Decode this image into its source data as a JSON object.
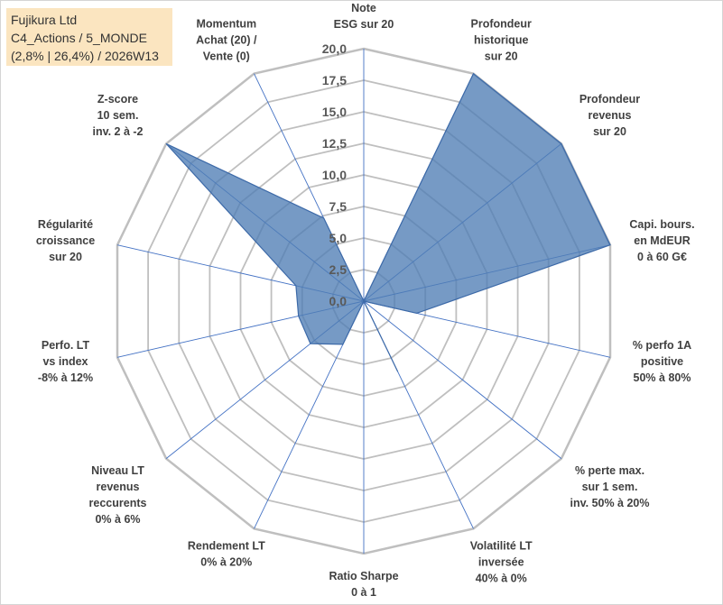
{
  "title_box": {
    "line1": "Fujikura Ltd",
    "line2": "C4_Actions / 5_MONDE",
    "line3": "(2,8% | 26,4%) / 2026W13"
  },
  "chart_data": {
    "type": "radar",
    "title": "Fujikura Ltd",
    "categories": [
      [
        "Note",
        "ESG sur 20"
      ],
      [
        "Profondeur",
        "historique",
        "sur 20"
      ],
      [
        "Profondeur",
        "revenus",
        "sur 20"
      ],
      [
        "Capi. bours.",
        "en MdEUR",
        "0 à 60 G€"
      ],
      [
        "% perfo 1A",
        "positive",
        "50% à 80%"
      ],
      [
        "% perte max.",
        "sur 1 sem.",
        "inv. 50% à 20%"
      ],
      [
        "Volatilité LT",
        "inversée",
        "40% à 0%"
      ],
      [
        "Ratio Sharpe",
        "0 à 1"
      ],
      [
        "Rendement LT",
        "0% à 20%"
      ],
      [
        "Niveau LT",
        "revenus",
        "reccurents",
        "0% à 6%"
      ],
      [
        "Perfo. LT",
        "vs index",
        "-8% à 12%"
      ],
      [
        "Régularité",
        "croissance",
        "sur 20"
      ],
      [
        "Z-score",
        "10 sem.",
        "inv. 2 à -2"
      ],
      [
        "Momentum",
        "Achat (20) /",
        "Vente (0)"
      ]
    ],
    "series": [
      {
        "name": "Fujikura Ltd",
        "values": [
          0,
          20,
          20,
          20,
          4.3,
          0,
          6.2,
          0,
          3.8,
          5.4,
          5.3,
          5.5,
          20,
          7.3
        ]
      }
    ],
    "rlim": [
      0,
      20
    ],
    "ticks": [
      "0,0",
      "2,5",
      "5,0",
      "7,5",
      "10,0",
      "12,5",
      "15,0",
      "17,5",
      "20,0"
    ],
    "grid": true,
    "fill_color": "#4f7db5",
    "stroke_color": "#3d6aa8",
    "grid_color": "#bfbfbf",
    "spoke_color": "#4472c4"
  }
}
